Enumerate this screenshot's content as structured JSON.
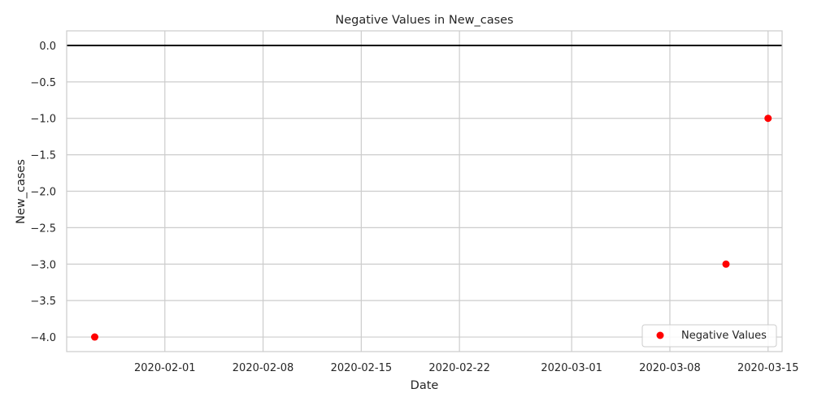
{
  "chart_data": {
    "type": "scatter",
    "title": "Negative Values in New_cases",
    "xlabel": "Date",
    "ylabel": "New_cases",
    "x_ticks": [
      "2020-02-01",
      "2020-02-08",
      "2020-02-15",
      "2020-02-22",
      "2020-03-01",
      "2020-03-08",
      "2020-03-15"
    ],
    "y_ticks": [
      0.0,
      -0.5,
      -1.0,
      -1.5,
      -2.0,
      -2.5,
      -3.0,
      -3.5,
      -4.0
    ],
    "y_tick_labels": [
      "0.0",
      "−0.5",
      "−1.0",
      "−1.5",
      "−2.0",
      "−2.5",
      "−3.0",
      "−3.5",
      "−4.0"
    ],
    "xlim": [
      "2020-01-25",
      "2020-03-16"
    ],
    "ylim": [
      -4.2,
      0.2
    ],
    "grid": true,
    "reference_line": {
      "y": 0,
      "color": "#000000"
    },
    "legend": {
      "position": "bottom-right",
      "entries": [
        "Negative Values"
      ]
    },
    "series": [
      {
        "name": "Negative Values",
        "color": "#ff0000",
        "points": [
          {
            "x": "2020-01-27",
            "y": -4
          },
          {
            "x": "2020-03-12",
            "y": -3
          },
          {
            "x": "2020-03-15",
            "y": -1
          }
        ]
      }
    ]
  }
}
